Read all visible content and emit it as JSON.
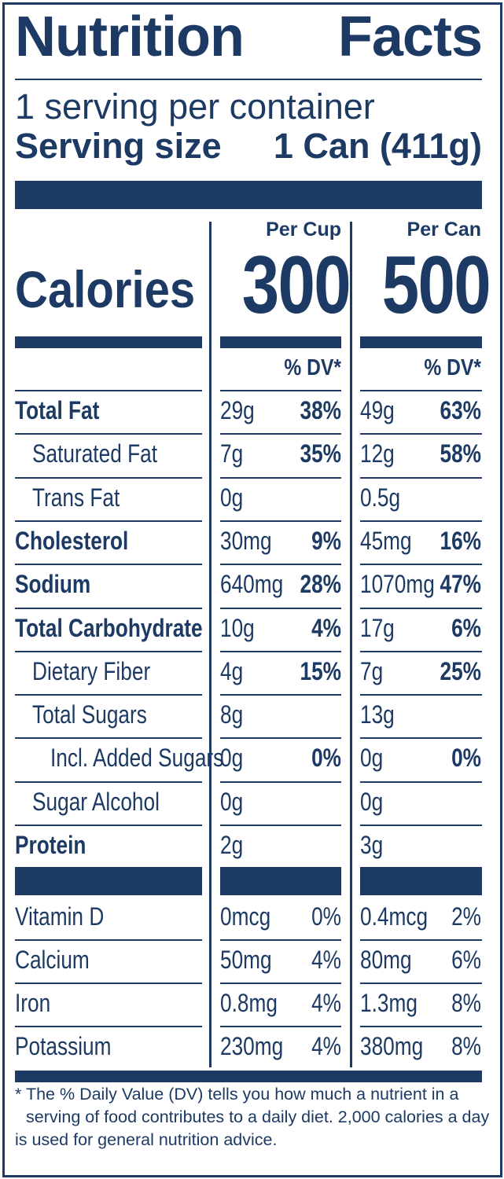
{
  "title": {
    "left": "Nutrition",
    "right": "Facts"
  },
  "servings_per_container": "1 serving per container",
  "serving_size": {
    "label": "Serving size",
    "value": "1 Can (411g)"
  },
  "columns": {
    "per_cup": "Per Cup",
    "per_can": "Per Can",
    "dv_header": "% DV*"
  },
  "calories": {
    "label": "Calories",
    "per_cup": "300",
    "per_can": "500"
  },
  "nutrients": [
    {
      "label": "Total Fat",
      "bold": true,
      "indent": 0,
      "cup_amount": "29g",
      "cup_dv": "38%",
      "can_amount": "49g",
      "can_dv": "63%"
    },
    {
      "label": "Saturated Fat",
      "bold": false,
      "indent": 1,
      "cup_amount": "7g",
      "cup_dv": "35%",
      "can_amount": "12g",
      "can_dv": "58%"
    },
    {
      "label": "Trans Fat",
      "bold": false,
      "indent": 1,
      "cup_amount": "0g",
      "cup_dv": "",
      "can_amount": "0.5g",
      "can_dv": ""
    },
    {
      "label": "Cholesterol",
      "bold": true,
      "indent": 0,
      "cup_amount": "30mg",
      "cup_dv": "9%",
      "can_amount": "45mg",
      "can_dv": "16%"
    },
    {
      "label": "Sodium",
      "bold": true,
      "indent": 0,
      "cup_amount": "640mg",
      "cup_dv": "28%",
      "can_amount": "1070mg",
      "can_dv": "47%"
    },
    {
      "label": "Total Carbohydrate",
      "bold": true,
      "indent": 0,
      "cup_amount": "10g",
      "cup_dv": "4%",
      "can_amount": "17g",
      "can_dv": "6%"
    },
    {
      "label": "Dietary Fiber",
      "bold": false,
      "indent": 1,
      "cup_amount": "4g",
      "cup_dv": "15%",
      "can_amount": "7g",
      "can_dv": "25%"
    },
    {
      "label": "Total Sugars",
      "bold": false,
      "indent": 1,
      "cup_amount": "8g",
      "cup_dv": "",
      "can_amount": "13g",
      "can_dv": ""
    },
    {
      "label": "Incl. Added Sugars",
      "bold": false,
      "indent": 2,
      "cup_amount": "0g",
      "cup_dv": "0%",
      "can_amount": "0g",
      "can_dv": "0%"
    },
    {
      "label": "Sugar Alcohol",
      "bold": false,
      "indent": 1,
      "cup_amount": "0g",
      "cup_dv": "",
      "can_amount": "0g",
      "can_dv": ""
    },
    {
      "label": "Protein",
      "bold": true,
      "indent": 0,
      "cup_amount": "2g",
      "cup_dv": "",
      "can_amount": "3g",
      "can_dv": ""
    }
  ],
  "vitamins": [
    {
      "label": "Vitamin D",
      "cup_amount": "0mcg",
      "cup_dv": "0%",
      "can_amount": "0.4mcg",
      "can_dv": "2%"
    },
    {
      "label": "Calcium",
      "cup_amount": "50mg",
      "cup_dv": "4%",
      "can_amount": "80mg",
      "can_dv": "6%"
    },
    {
      "label": "Iron",
      "cup_amount": "0.8mg",
      "cup_dv": "4%",
      "can_amount": "1.3mg",
      "can_dv": "8%"
    },
    {
      "label": "Potassium",
      "cup_amount": "230mg",
      "cup_dv": "4%",
      "can_amount": "380mg",
      "can_dv": "8%"
    }
  ],
  "footnote": {
    "line1": "* The % Daily Value (DV) tells you how much a nutrient in a",
    "line2": "serving of food contributes to a daily diet. 2,000 calories a day",
    "line3": "is used for general nutrition advice."
  },
  "colors": {
    "ink": "#1c3a63",
    "background": "#ffffff"
  }
}
